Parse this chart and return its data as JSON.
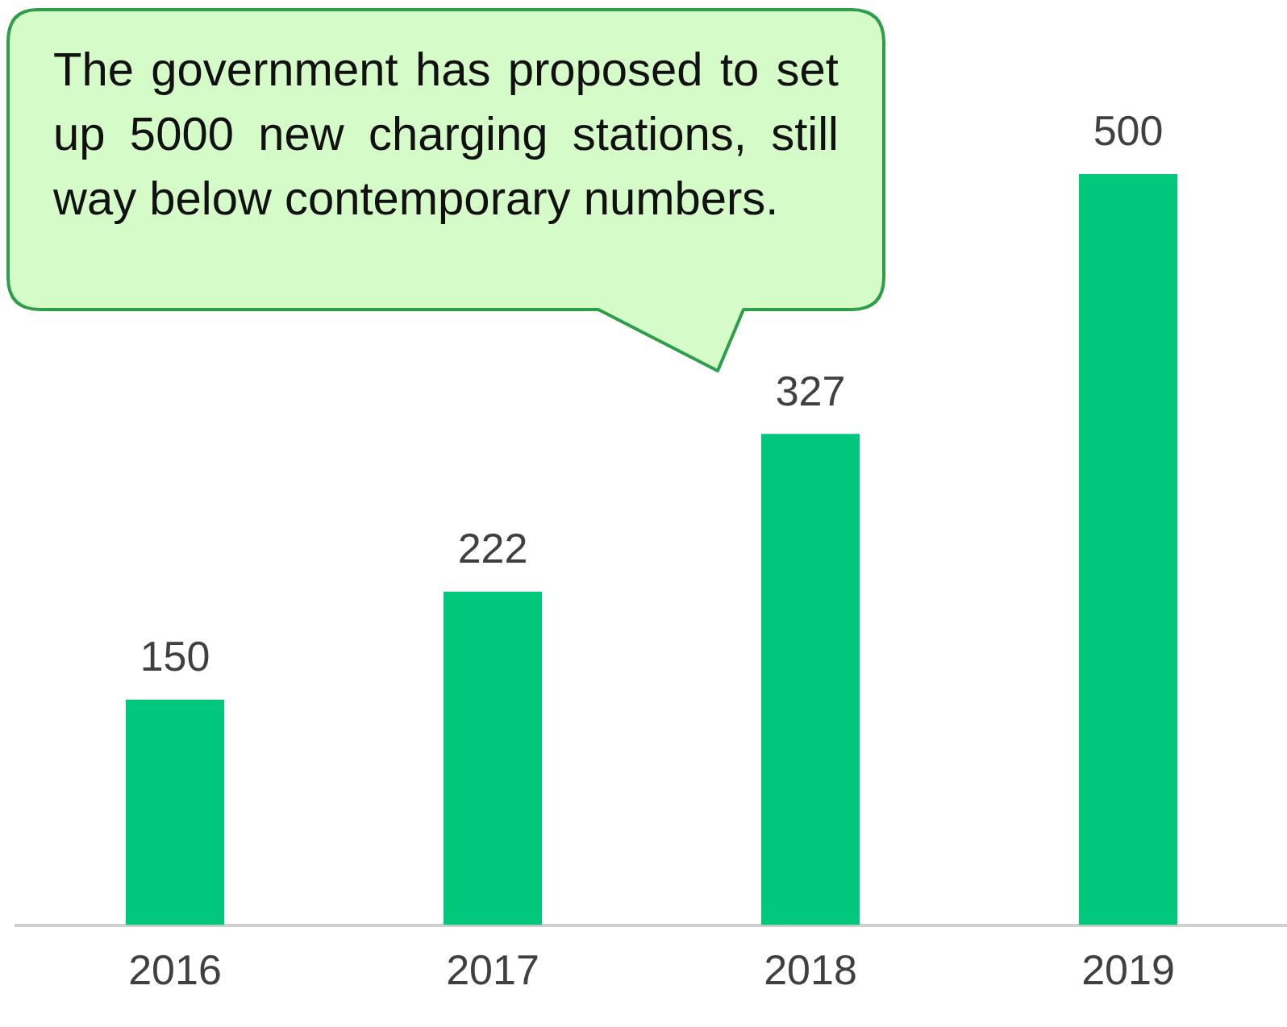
{
  "chart_data": {
    "type": "bar",
    "categories": [
      "2016",
      "2017",
      "2018",
      "2019"
    ],
    "values": [
      150,
      222,
      327,
      500
    ],
    "color": "#00c77c",
    "data_labels": true,
    "grid": false,
    "legend": false,
    "annotations": [
      "The government has proposed to set up 5000 new charging stations, still way below contemporary numbers."
    ]
  }
}
